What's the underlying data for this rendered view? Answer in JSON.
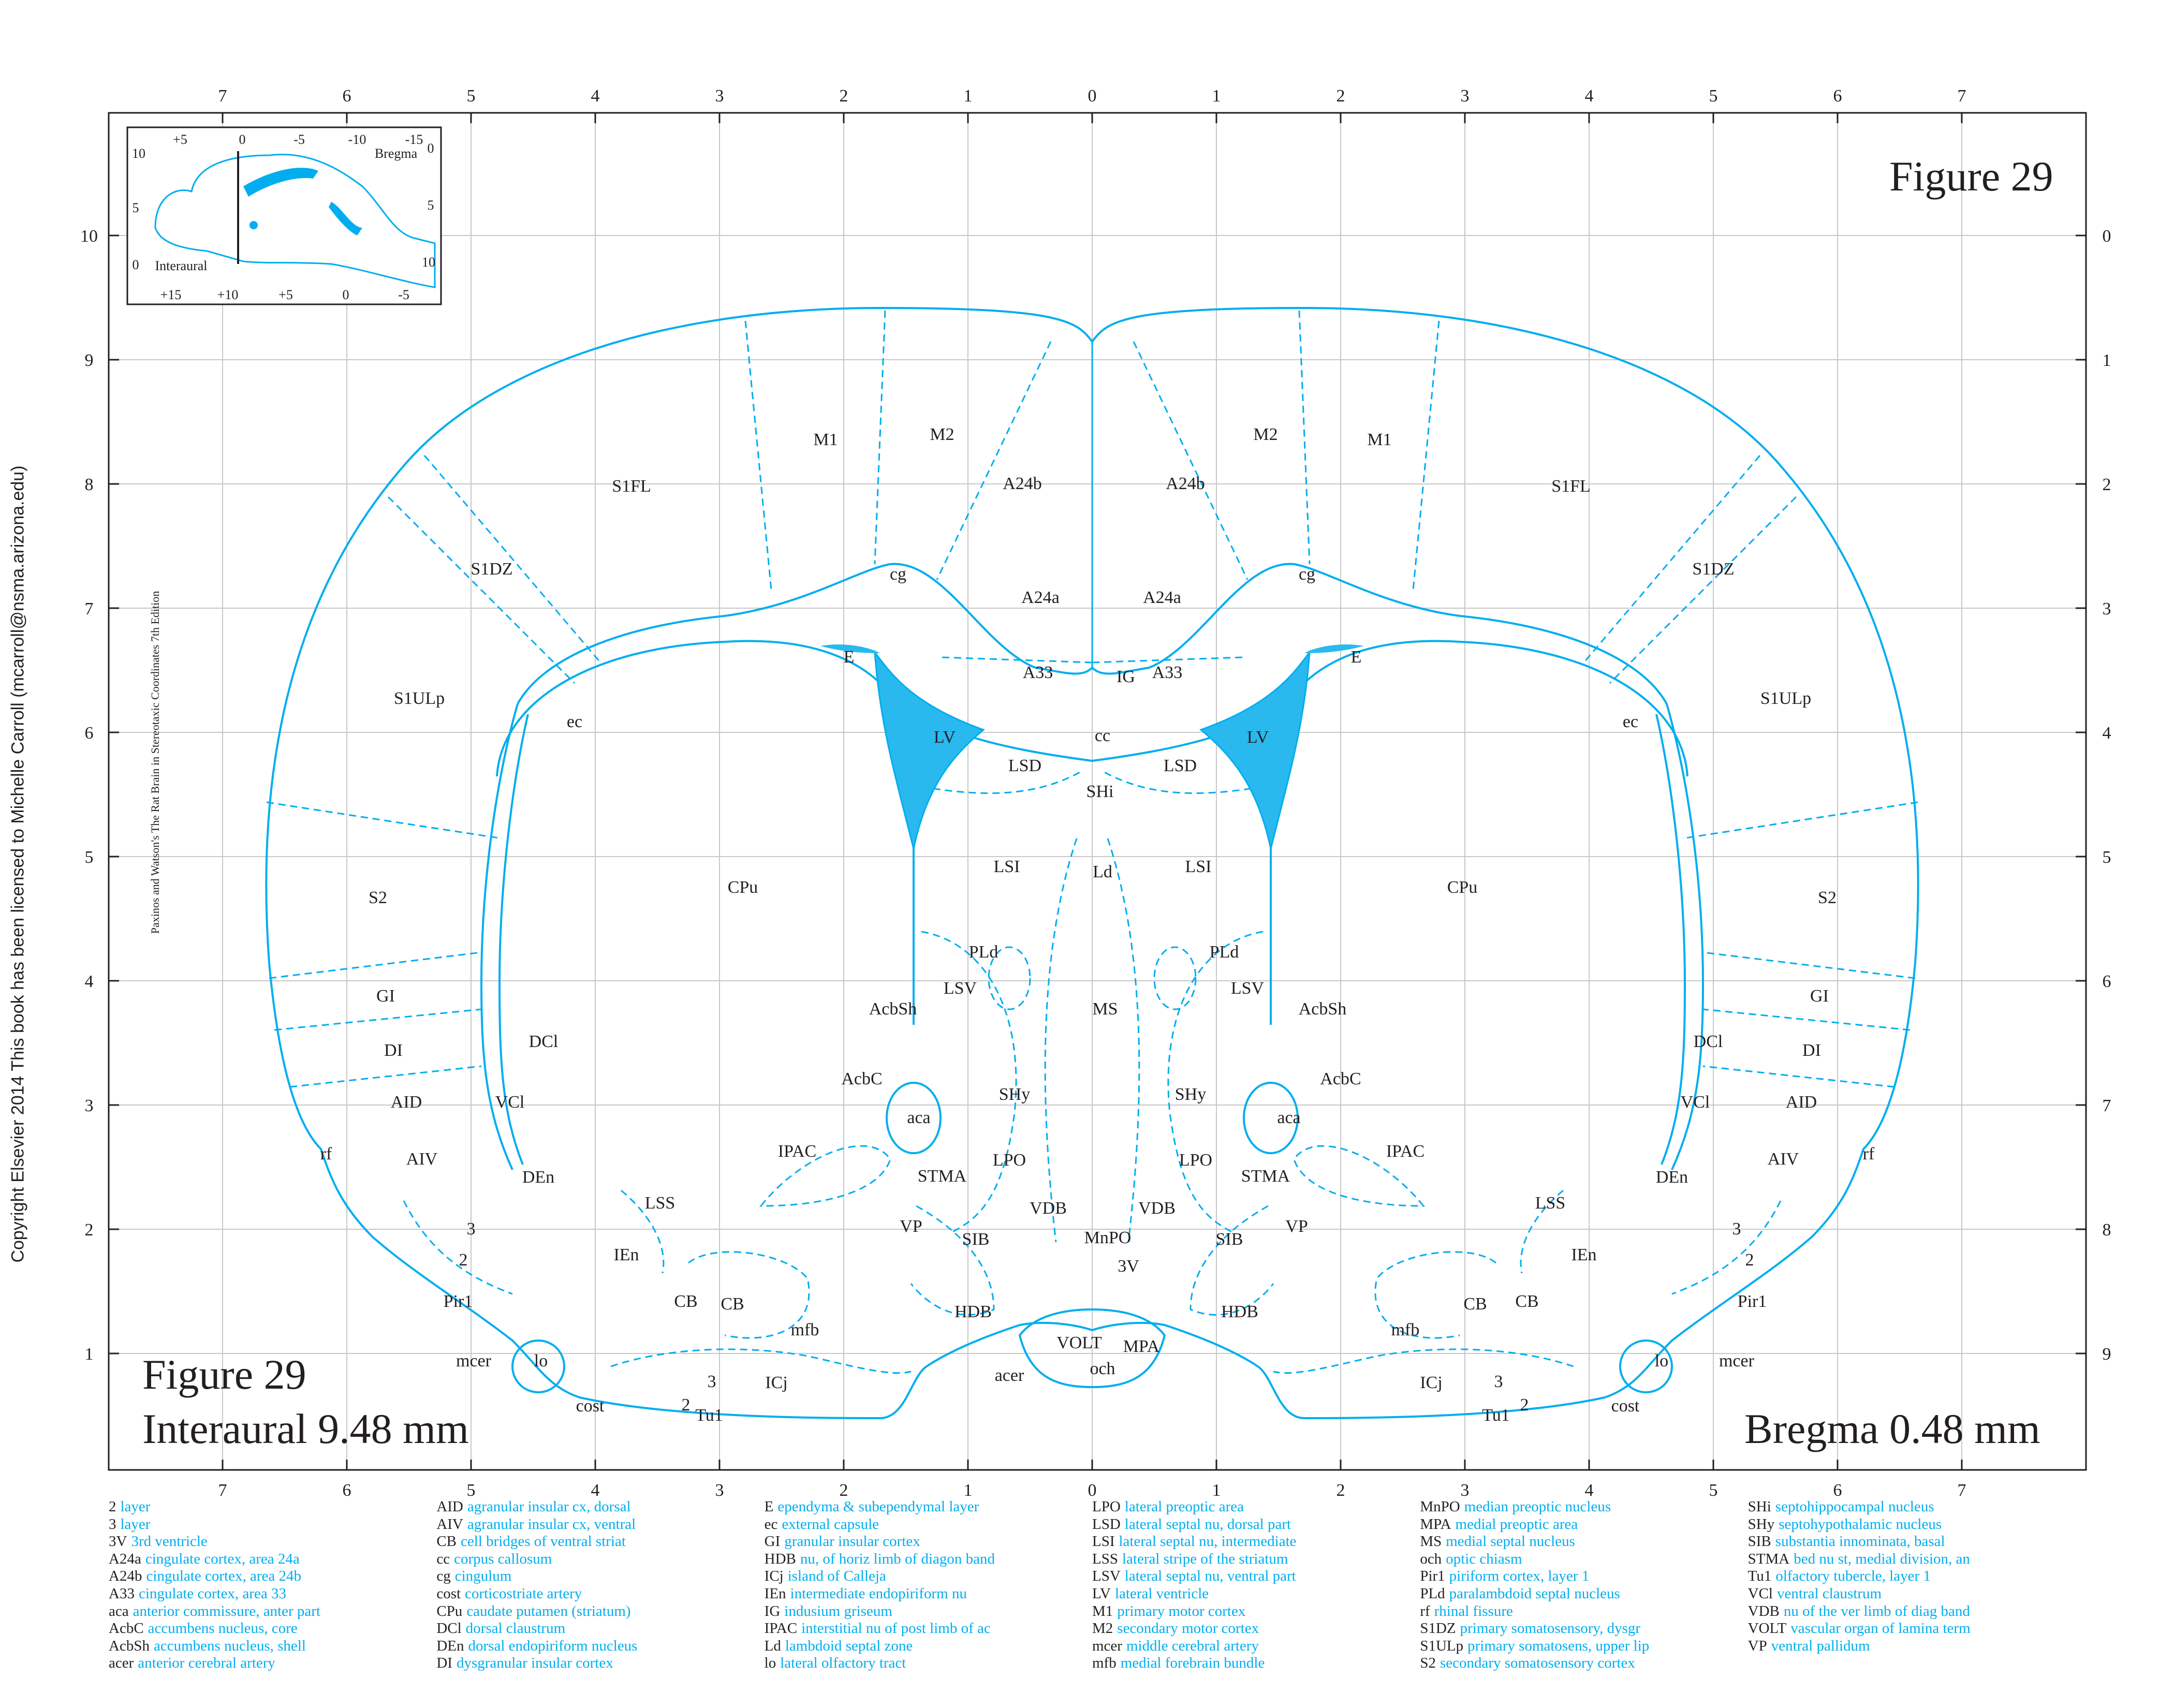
{
  "figure_label": "Figure 29",
  "interaural": "Interaural 9.48 mm",
  "bregma": "Bregma 0.48 mm",
  "copyright": "Copyright Elsevier 2014 This book has been licensed to Michelle Carroll (mcarroll@nsma.arizona.edu)",
  "edition": "Paxinos and Watson's The Rat Brain in Stereotaxic Coordinates    7th Edition",
  "axis": {
    "x_ticks": [
      "7",
      "6",
      "5",
      "4",
      "3",
      "2",
      "1",
      "0",
      "1",
      "2",
      "3",
      "4",
      "5",
      "6",
      "7"
    ],
    "y_left_ticks": [
      "10",
      "9",
      "8",
      "7",
      "6",
      "5",
      "4",
      "3",
      "2",
      "1"
    ],
    "y_right_ticks": [
      "0",
      "1",
      "2",
      "3",
      "4",
      "5",
      "6",
      "7",
      "8",
      "9"
    ]
  },
  "inset": {
    "top_ticks": [
      "+5",
      "0",
      "-5",
      "-10",
      "-15"
    ],
    "bottom_ticks": [
      "+15",
      "+10",
      "+5",
      "0",
      "-5"
    ],
    "left_ticks": [
      "10",
      "5",
      "0"
    ],
    "right_ticks": [
      "0",
      "5",
      "10"
    ],
    "bregma_label": "Bregma",
    "interaural_label": "Interaural"
  },
  "regions": [
    "M1",
    "M2",
    "A24b",
    "S1FL",
    "S1DZ",
    "cg",
    "A24a",
    "A33",
    "IG",
    "E",
    "LV",
    "cc",
    "ec",
    "S1ULp",
    "LSD",
    "SHi",
    "LSI",
    "Ld",
    "CPu",
    "S2",
    "PLd",
    "LSV",
    "MS",
    "AcbSh",
    "GI",
    "DCl",
    "DI",
    "AcbC",
    "SHy",
    "aca",
    "AID",
    "VCl",
    "IPAC",
    "LPO",
    "STMA",
    "rf",
    "AIV",
    "DEn",
    "LSS",
    "VDB",
    "VP",
    "3",
    "2",
    "IEn",
    "SIB",
    "MnPO",
    "3V",
    "Pir1",
    "CB",
    "HDB",
    "mfb",
    "VOLT",
    "MPA",
    "och",
    "mcer",
    "lo",
    "acer",
    "ICj",
    "Tu1",
    "cost"
  ],
  "legend": [
    [
      {
        "abbr": "2",
        "desc": "layer"
      },
      {
        "abbr": "3",
        "desc": "layer"
      },
      {
        "abbr": "3V",
        "desc": "3rd ventricle"
      },
      {
        "abbr": "A24a",
        "desc": "cingulate cortex, area 24a"
      },
      {
        "abbr": "A24b",
        "desc": "cingulate cortex, area 24b"
      },
      {
        "abbr": "A33",
        "desc": "cingulate cortex, area 33"
      },
      {
        "abbr": "aca",
        "desc": "anterior commissure, anter part"
      },
      {
        "abbr": "AcbC",
        "desc": "accumbens nucleus, core"
      },
      {
        "abbr": "AcbSh",
        "desc": "accumbens nucleus, shell"
      },
      {
        "abbr": "acer",
        "desc": "anterior cerebral artery"
      }
    ],
    [
      {
        "abbr": "AID",
        "desc": "agranular insular cx, dorsal"
      },
      {
        "abbr": "AIV",
        "desc": "agranular insular cx, ventral"
      },
      {
        "abbr": "CB",
        "desc": "cell bridges of ventral striat"
      },
      {
        "abbr": "cc",
        "desc": "corpus callosum"
      },
      {
        "abbr": "cg",
        "desc": "cingulum"
      },
      {
        "abbr": "cost",
        "desc": "corticostriate artery"
      },
      {
        "abbr": "CPu",
        "desc": "caudate putamen (striatum)"
      },
      {
        "abbr": "DCl",
        "desc": "dorsal claustrum"
      },
      {
        "abbr": "DEn",
        "desc": "dorsal endopiriform nucleus"
      },
      {
        "abbr": "DI",
        "desc": "dysgranular insular cortex"
      }
    ],
    [
      {
        "abbr": "E",
        "desc": "ependyma & subependymal layer"
      },
      {
        "abbr": "ec",
        "desc": "external capsule"
      },
      {
        "abbr": "GI",
        "desc": "granular insular cortex"
      },
      {
        "abbr": "HDB",
        "desc": "nu, of horiz limb of diagon band"
      },
      {
        "abbr": "ICj",
        "desc": "island of Calleja"
      },
      {
        "abbr": "IEn",
        "desc": "intermediate endopiriform nu"
      },
      {
        "abbr": "IG",
        "desc": "indusium griseum"
      },
      {
        "abbr": "IPAC",
        "desc": "interstitial nu of post limb of ac"
      },
      {
        "abbr": "Ld",
        "desc": "lambdoid septal zone"
      },
      {
        "abbr": "lo",
        "desc": "lateral olfactory tract"
      }
    ],
    [
      {
        "abbr": "LPO",
        "desc": "lateral preoptic area"
      },
      {
        "abbr": "LSD",
        "desc": "lateral septal nu, dorsal part"
      },
      {
        "abbr": "LSI",
        "desc": "lateral septal nu, intermediate"
      },
      {
        "abbr": "LSS",
        "desc": "lateral stripe of the striatum"
      },
      {
        "abbr": "LSV",
        "desc": "lateral septal nu, ventral part"
      },
      {
        "abbr": "LV",
        "desc": "lateral ventricle"
      },
      {
        "abbr": "M1",
        "desc": "primary motor cortex"
      },
      {
        "abbr": "M2",
        "desc": "secondary motor cortex"
      },
      {
        "abbr": "mcer",
        "desc": "middle cerebral artery"
      },
      {
        "abbr": "mfb",
        "desc": "medial forebrain bundle"
      }
    ],
    [
      {
        "abbr": "MnPO",
        "desc": "median preoptic nucleus"
      },
      {
        "abbr": "MPA",
        "desc": "medial preoptic area"
      },
      {
        "abbr": "MS",
        "desc": "medial septal nucleus"
      },
      {
        "abbr": "och",
        "desc": "optic chiasm"
      },
      {
        "abbr": "Pir1",
        "desc": "piriform cortex, layer 1"
      },
      {
        "abbr": "PLd",
        "desc": "paralambdoid septal nucleus"
      },
      {
        "abbr": "rf",
        "desc": "rhinal fissure"
      },
      {
        "abbr": "S1DZ",
        "desc": "primary somatosensory, dysgr"
      },
      {
        "abbr": "S1ULp",
        "desc": "primary somatosens, upper lip"
      },
      {
        "abbr": "S2",
        "desc": "secondary somatosensory cortex"
      }
    ],
    [
      {
        "abbr": "SHi",
        "desc": "septohippocampal nucleus"
      },
      {
        "abbr": "SHy",
        "desc": "septohypothalamic nucleus"
      },
      {
        "abbr": "SIB",
        "desc": "substantia innominata, basal"
      },
      {
        "abbr": "STMA",
        "desc": "bed nu st, medial division, an"
      },
      {
        "abbr": "Tu1",
        "desc": "olfactory tubercle, layer 1"
      },
      {
        "abbr": "VCl",
        "desc": "ventral claustrum"
      },
      {
        "abbr": "VDB",
        "desc": "nu of the ver limb of diag band"
      },
      {
        "abbr": "VOLT",
        "desc": "vascular organ of lamina term"
      },
      {
        "abbr": "VP",
        "desc": "ventral pallidum"
      }
    ]
  ]
}
